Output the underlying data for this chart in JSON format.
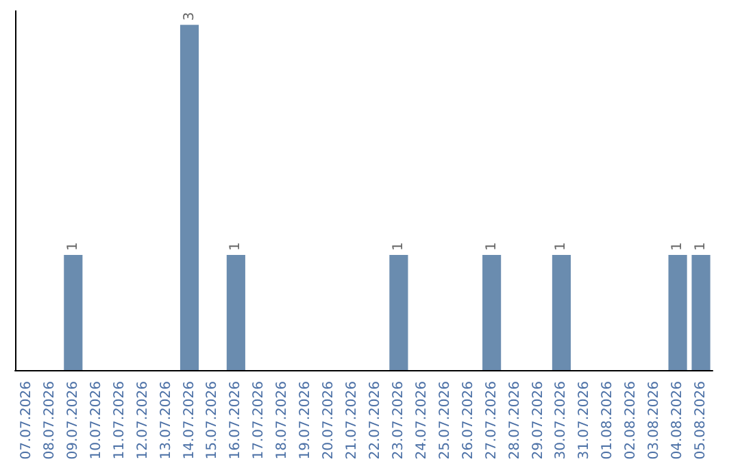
{
  "chart_data": {
    "type": "bar",
    "categories": [
      "07.07.2026",
      "08.07.2026",
      "09.07.2026",
      "10.07.2026",
      "11.07.2026",
      "12.07.2026",
      "13.07.2026",
      "14.07.2026",
      "15.07.2026",
      "16.07.2026",
      "17.07.2026",
      "18.07.2026",
      "19.07.2026",
      "20.07.2026",
      "21.07.2026",
      "22.07.2026",
      "23.07.2026",
      "24.07.2026",
      "25.07.2026",
      "26.07.2026",
      "27.07.2026",
      "28.07.2026",
      "29.07.2026",
      "30.07.2026",
      "31.07.2026",
      "01.08.2026",
      "02.08.2026",
      "03.08.2026",
      "04.08.2026",
      "05.08.2026"
    ],
    "values": [
      0,
      0,
      1,
      0,
      0,
      0,
      0,
      3,
      0,
      1,
      0,
      0,
      0,
      0,
      0,
      0,
      1,
      0,
      0,
      0,
      1,
      0,
      0,
      1,
      0,
      0,
      0,
      0,
      1,
      1
    ],
    "value_labels": [
      null,
      null,
      "1",
      null,
      null,
      null,
      null,
      "3",
      null,
      "1",
      null,
      null,
      null,
      null,
      null,
      null,
      "1",
      null,
      null,
      null,
      "1",
      null,
      null,
      "1",
      null,
      null,
      null,
      null,
      "1",
      "1"
    ],
    "color": "#6a8caf"
  }
}
